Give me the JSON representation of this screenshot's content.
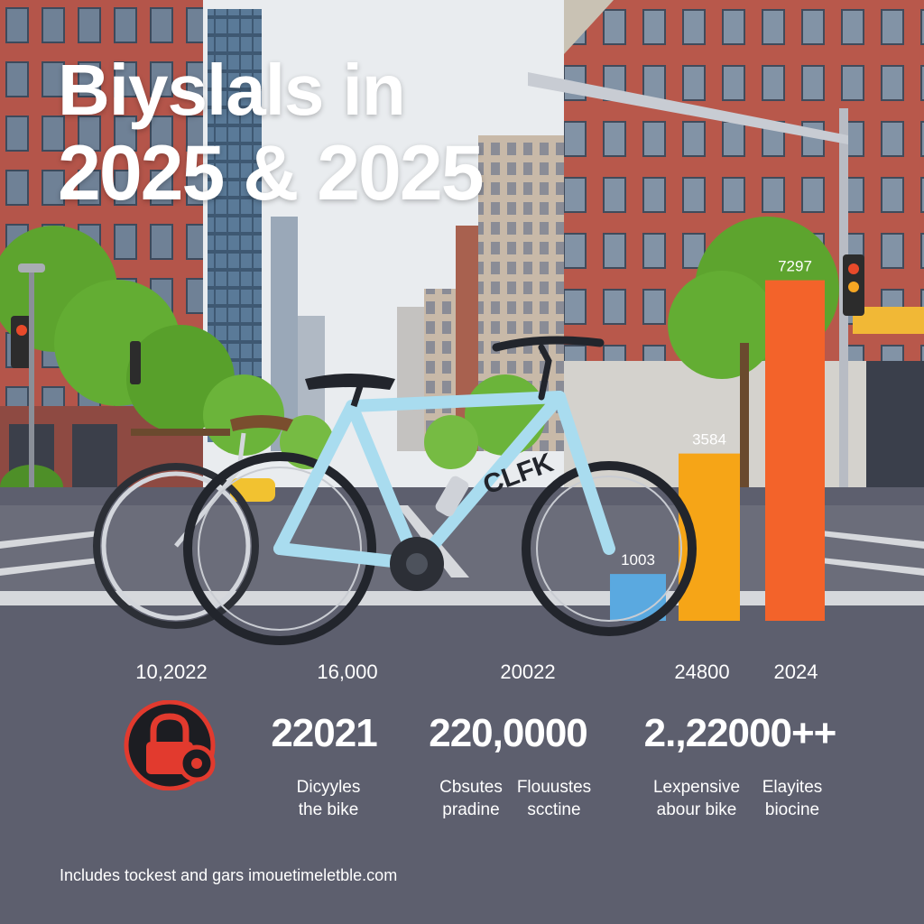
{
  "title": {
    "line1": "Biyslals in",
    "line2": "2025 & 2025"
  },
  "chart_data": {
    "type": "bar",
    "categories": [
      "",
      "",
      ""
    ],
    "values": [
      1003,
      3584,
      7297
    ],
    "data_labels": [
      "1003",
      "3584",
      "7297"
    ],
    "bar_colors": [
      "#5aa9e0",
      "#f6a517",
      "#f3632a"
    ],
    "ylim": [
      0,
      8700
    ]
  },
  "ticks": [
    "10,2022",
    "16,000",
    "20022",
    "24800",
    "2024"
  ],
  "stats": [
    "22021",
    "220,0000",
    "2.,22000++"
  ],
  "captions": [
    {
      "line1": "Dicyyles",
      "line2": "the bike"
    },
    {
      "line1": "Cbsutes",
      "line2": "pradine"
    },
    {
      "line1": "Flouustes",
      "line2": "scctine"
    },
    {
      "line1": "Lexpensive",
      "line2": "abour bike"
    },
    {
      "line1": "Elayites",
      "line2": "biocine"
    }
  ],
  "bike_brand": "CLFK",
  "footer": "Includes tockest and gars imouetimeletble.com",
  "colors": {
    "road": "#5d5f6e",
    "sky": "#e9ecef",
    "brick": "#b4554a",
    "bike_frame": "#a9dcef",
    "lock": "#e23a2e"
  },
  "icons": [
    "lock-icon"
  ]
}
